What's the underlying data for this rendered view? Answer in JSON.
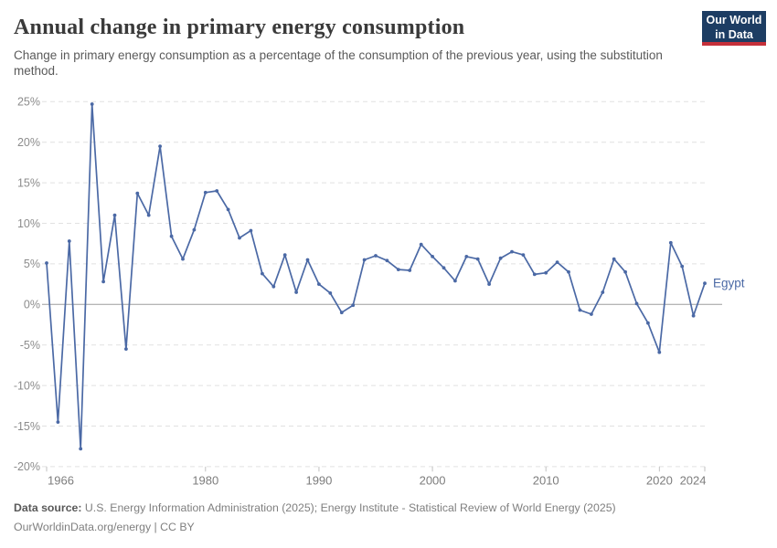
{
  "header": {
    "title": "Annual change in primary energy consumption",
    "subtitle": "Change in primary energy consumption as a percentage of the consumption of the previous year, using the substitution method.",
    "logo": {
      "line1": "Our World",
      "line2": "in Data"
    }
  },
  "chart_data": {
    "type": "line",
    "title": "Annual change in primary energy consumption",
    "entity": "Egypt",
    "unit": "%",
    "x": [
      1966,
      1967,
      1968,
      1969,
      1970,
      1971,
      1972,
      1973,
      1974,
      1975,
      1976,
      1977,
      1978,
      1979,
      1980,
      1981,
      1982,
      1983,
      1984,
      1985,
      1986,
      1987,
      1988,
      1989,
      1990,
      1991,
      1992,
      1993,
      1994,
      1995,
      1996,
      1997,
      1998,
      1999,
      2000,
      2001,
      2002,
      2003,
      2004,
      2005,
      2006,
      2007,
      2008,
      2009,
      2010,
      2011,
      2012,
      2013,
      2014,
      2015,
      2016,
      2017,
      2018,
      2019,
      2020,
      2021,
      2022,
      2023,
      2024
    ],
    "values": [
      5.1,
      -14.5,
      7.8,
      -17.8,
      24.7,
      2.8,
      11.0,
      -5.5,
      13.7,
      11.0,
      19.5,
      8.4,
      5.6,
      9.2,
      13.8,
      14.0,
      11.7,
      8.2,
      9.1,
      3.8,
      2.2,
      6.1,
      1.5,
      5.5,
      2.5,
      1.4,
      -1.0,
      -0.1,
      5.5,
      6.0,
      5.4,
      4.3,
      4.2,
      7.4,
      5.9,
      4.5,
      2.9,
      5.9,
      5.6,
      2.5,
      5.7,
      6.5,
      6.1,
      3.7,
      3.9,
      5.2,
      4.0,
      -0.7,
      -1.2,
      1.5,
      5.6,
      4.0,
      0.1,
      -2.3,
      -5.9,
      7.6,
      4.7,
      -1.4,
      2.6
    ],
    "ylim": [
      -20,
      25
    ],
    "yticks": [
      25,
      20,
      15,
      10,
      5,
      0,
      -5,
      -10,
      -15,
      -20
    ],
    "ytick_suffix": "%",
    "xticks": [
      1966,
      1980,
      1990,
      2000,
      2010,
      2020,
      2024
    ],
    "grid": true,
    "line_color": "#4B69A5",
    "zero_line_color": "#9e9e9e",
    "grid_color": "#e1e1e1",
    "legend_position": "line-end"
  },
  "footer": {
    "datasource_label": "Data source:",
    "datasource_text": "U.S. Energy Information Administration (2025); Energy Institute - Statistical Review of World Energy (2025)",
    "license_line": "OurWorldinData.org/energy | CC BY"
  }
}
